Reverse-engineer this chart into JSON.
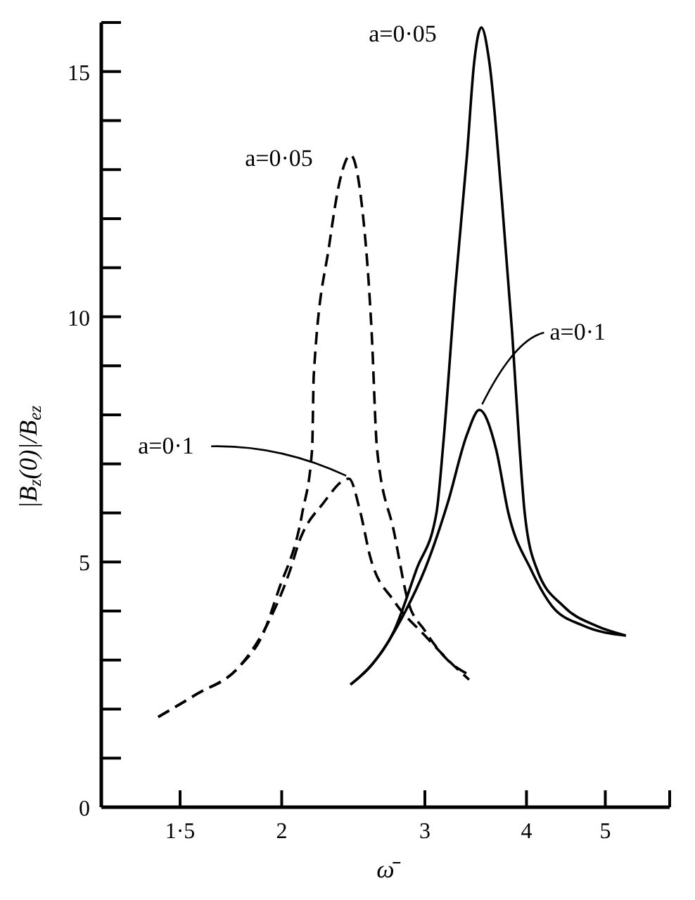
{
  "chart_data": {
    "type": "line",
    "ylabel": "|B$_{z}$(0)|/B$_{ez}$",
    "xlabel": "ω̄",
    "log": "x",
    "marker": "none",
    "xlim": [
      1.2,
      6
    ],
    "xticks": [
      {
        "value": 1.5,
        "label": "1·5"
      },
      2,
      3,
      4,
      5,
      {
        "value": 6,
        "label": null
      }
    ],
    "ylim": [
      0,
      16
    ],
    "yticks": [
      0,
      {
        "value": 1,
        "label": null
      },
      {
        "value": 2,
        "label": null
      },
      {
        "value": 3,
        "label": null
      },
      {
        "value": 4,
        "label": null
      },
      5,
      {
        "value": 6,
        "label": null
      },
      {
        "value": 7,
        "label": null
      },
      {
        "value": 8,
        "label": null
      },
      {
        "value": 9,
        "label": null
      },
      10,
      {
        "value": 11,
        "label": null
      },
      {
        "value": 12,
        "label": null
      },
      {
        "value": 13,
        "label": null
      },
      {
        "value": 14,
        "label": null
      },
      15,
      {
        "value": 16,
        "label": null
      }
    ],
    "series": [
      {
        "name": "a=0·05",
        "color": "#000000",
        "line_style": "dashed",
        "x": [
          1.41,
          1.57,
          1.77,
          1.9,
          1.98,
          2.12,
          2.18,
          2.19,
          2.29,
          2.36,
          2.43,
          2.5,
          2.58,
          2.62,
          2.75,
          2.86,
          3.0,
          3.2,
          3.4
        ],
        "values": [
          1.84,
          2.3,
          2.85,
          3.56,
          4.4,
          6.0,
          7.3,
          8.8,
          11.5,
          12.8,
          13.3,
          12.5,
          9.7,
          7.3,
          5.6,
          4.2,
          3.6,
          3.0,
          2.7
        ]
      },
      {
        "name": "a=0·1",
        "color": "#000000",
        "line_style": "dashed",
        "x": [
          1.41,
          1.57,
          1.77,
          1.93,
          2.05,
          2.1,
          2.25,
          2.42,
          2.5,
          2.57,
          2.75,
          3.0,
          3.25,
          3.4
        ],
        "values": [
          1.84,
          2.3,
          2.85,
          3.8,
          4.85,
          5.4,
          6.2,
          6.7,
          6.0,
          5.1,
          4.2,
          3.5,
          2.9,
          2.6
        ]
      },
      {
        "name": "a=0·05",
        "color": "#000000",
        "line_style": "solid",
        "x": [
          2.43,
          2.58,
          2.75,
          2.93,
          3.1,
          3.16,
          3.27,
          3.38,
          3.45,
          3.52,
          3.6,
          3.73,
          3.84,
          3.92,
          3.98,
          4.12,
          4.44,
          4.87,
          5.3
        ],
        "values": [
          2.5,
          2.9,
          3.6,
          4.85,
          6.0,
          7.4,
          10.6,
          13.3,
          15.2,
          15.9,
          15.2,
          12.4,
          9.7,
          7.4,
          6.0,
          4.85,
          4.1,
          3.7,
          3.5
        ]
      },
      {
        "name": "a=0·1",
        "color": "#000000",
        "line_style": "solid",
        "x": [
          2.43,
          2.58,
          2.84,
          3.0,
          3.2,
          3.38,
          3.5,
          3.67,
          3.8,
          4.05,
          4.3,
          4.7,
          5.3
        ],
        "values": [
          2.5,
          2.9,
          4.0,
          4.85,
          6.2,
          7.6,
          8.1,
          7.3,
          6.0,
          4.85,
          4.1,
          3.7,
          3.5
        ]
      }
    ]
  }
}
